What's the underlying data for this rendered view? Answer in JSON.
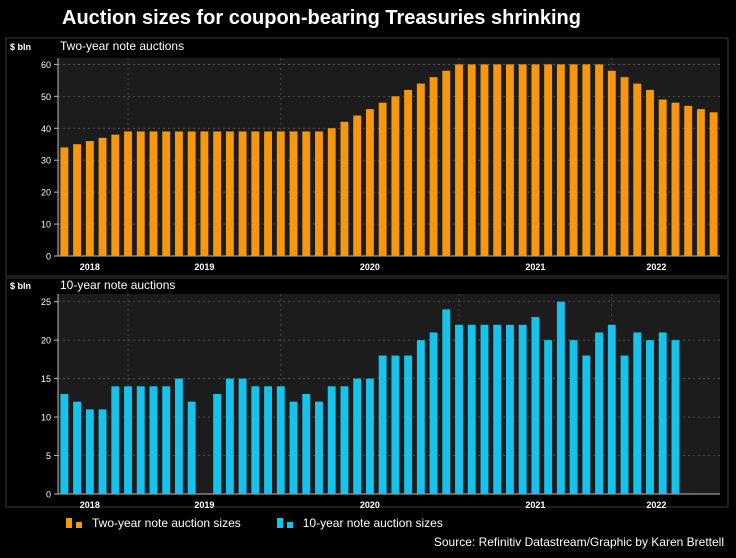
{
  "title": "Auction sizes for coupon-bearing Treasuries shrinking",
  "source": "Source: Refinitiv Datastream/Graphic by Karen Brettell",
  "legend": [
    {
      "label": "Two-year note auction sizes",
      "color": "#f7960f"
    },
    {
      "label": "10-year note auction sizes",
      "color": "#15c3ec"
    }
  ],
  "chart_data": [
    {
      "type": "bar",
      "title": "Two-year note auctions",
      "ylabel": "$ bln",
      "color": "#f7960f",
      "ylim": [
        0,
        62
      ],
      "yticks": [
        0,
        10,
        20,
        30,
        40,
        50,
        60
      ],
      "x_tick_labels": [
        {
          "label": "2018",
          "index": 2.5
        },
        {
          "label": "2019",
          "index": 11.5
        },
        {
          "label": "2020",
          "index": 24.5
        },
        {
          "label": "2021",
          "index": 37.5
        },
        {
          "label": "2022",
          "index": 47
        }
      ],
      "year_boundaries": [
        5.5,
        17.5,
        31.5,
        43.5
      ],
      "values": [
        34,
        35,
        36,
        37,
        38,
        39,
        39,
        39,
        39,
        39,
        39,
        39,
        39,
        39,
        39,
        39,
        39,
        39,
        39,
        39,
        39,
        40,
        42,
        44,
        46,
        48,
        50,
        52,
        54,
        56,
        58,
        60,
        60,
        60,
        60,
        60,
        60,
        60,
        60,
        60,
        60,
        60,
        60,
        58,
        56,
        54,
        52,
        49,
        48,
        47,
        46,
        45
      ]
    },
    {
      "type": "bar",
      "title": "10-year note auctions",
      "ylabel": "$ bln",
      "color": "#15c3ec",
      "ylim": [
        0,
        26
      ],
      "yticks": [
        0,
        5,
        10,
        15,
        20,
        25
      ],
      "x_tick_labels": [
        {
          "label": "2018",
          "index": 2.5
        },
        {
          "label": "2019",
          "index": 11.5
        },
        {
          "label": "2020",
          "index": 24.5
        },
        {
          "label": "2021",
          "index": 37.5
        },
        {
          "label": "2022",
          "index": 47
        }
      ],
      "year_boundaries": [
        5.5,
        17.5,
        31.5,
        43.5
      ],
      "values": [
        13,
        12,
        11,
        11,
        14,
        14,
        14,
        14,
        14,
        15,
        12,
        0,
        13,
        15,
        15,
        14,
        14,
        14,
        12,
        13,
        12,
        14,
        14,
        15,
        15,
        18,
        18,
        18,
        20,
        21,
        24,
        22,
        22,
        22,
        22,
        22,
        22,
        23,
        20,
        25,
        20,
        18,
        21,
        22,
        18,
        21,
        20,
        21,
        20
      ]
    }
  ]
}
